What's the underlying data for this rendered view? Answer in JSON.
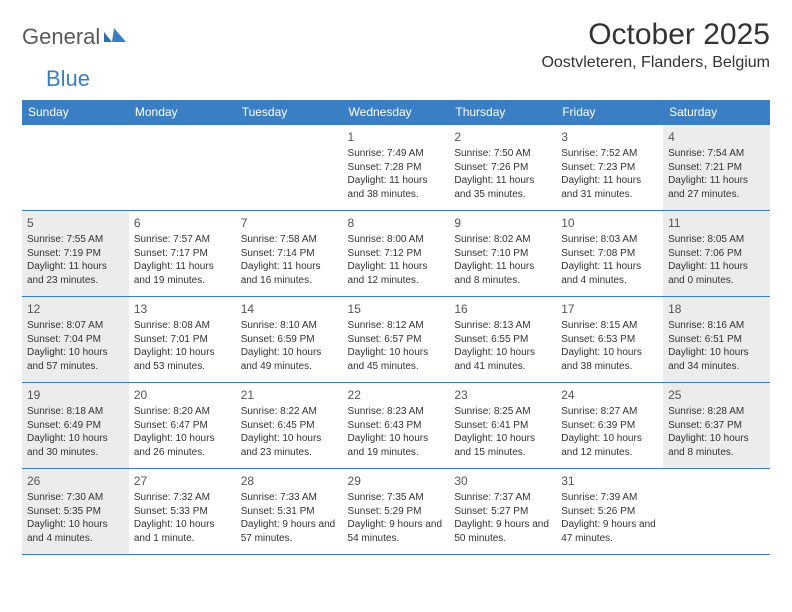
{
  "brand": {
    "name1": "General",
    "name2": "Blue"
  },
  "title": {
    "month": "October 2025",
    "location": "Oostvleteren, Flanders, Belgium"
  },
  "colors": {
    "header_bg": "#3a7fc4",
    "header_text": "#ffffff",
    "border": "#3a7fc4",
    "shade_bg": "#ececec",
    "body_text": "#333333",
    "logo_gray": "#5a5a5a",
    "logo_blue": "#3a7fc4"
  },
  "dayHeaders": [
    "Sunday",
    "Monday",
    "Tuesday",
    "Wednesday",
    "Thursday",
    "Friday",
    "Saturday"
  ],
  "weeks": [
    [
      {
        "day": "",
        "sunrise": "",
        "sunset": "",
        "daylight": "",
        "shade": false
      },
      {
        "day": "",
        "sunrise": "",
        "sunset": "",
        "daylight": "",
        "shade": false
      },
      {
        "day": "",
        "sunrise": "",
        "sunset": "",
        "daylight": "",
        "shade": false
      },
      {
        "day": "1",
        "sunrise": "Sunrise: 7:49 AM",
        "sunset": "Sunset: 7:28 PM",
        "daylight": "Daylight: 11 hours and 38 minutes.",
        "shade": false
      },
      {
        "day": "2",
        "sunrise": "Sunrise: 7:50 AM",
        "sunset": "Sunset: 7:26 PM",
        "daylight": "Daylight: 11 hours and 35 minutes.",
        "shade": false
      },
      {
        "day": "3",
        "sunrise": "Sunrise: 7:52 AM",
        "sunset": "Sunset: 7:23 PM",
        "daylight": "Daylight: 11 hours and 31 minutes.",
        "shade": false
      },
      {
        "day": "4",
        "sunrise": "Sunrise: 7:54 AM",
        "sunset": "Sunset: 7:21 PM",
        "daylight": "Daylight: 11 hours and 27 minutes.",
        "shade": true
      }
    ],
    [
      {
        "day": "5",
        "sunrise": "Sunrise: 7:55 AM",
        "sunset": "Sunset: 7:19 PM",
        "daylight": "Daylight: 11 hours and 23 minutes.",
        "shade": true
      },
      {
        "day": "6",
        "sunrise": "Sunrise: 7:57 AM",
        "sunset": "Sunset: 7:17 PM",
        "daylight": "Daylight: 11 hours and 19 minutes.",
        "shade": false
      },
      {
        "day": "7",
        "sunrise": "Sunrise: 7:58 AM",
        "sunset": "Sunset: 7:14 PM",
        "daylight": "Daylight: 11 hours and 16 minutes.",
        "shade": false
      },
      {
        "day": "8",
        "sunrise": "Sunrise: 8:00 AM",
        "sunset": "Sunset: 7:12 PM",
        "daylight": "Daylight: 11 hours and 12 minutes.",
        "shade": false
      },
      {
        "day": "9",
        "sunrise": "Sunrise: 8:02 AM",
        "sunset": "Sunset: 7:10 PM",
        "daylight": "Daylight: 11 hours and 8 minutes.",
        "shade": false
      },
      {
        "day": "10",
        "sunrise": "Sunrise: 8:03 AM",
        "sunset": "Sunset: 7:08 PM",
        "daylight": "Daylight: 11 hours and 4 minutes.",
        "shade": false
      },
      {
        "day": "11",
        "sunrise": "Sunrise: 8:05 AM",
        "sunset": "Sunset: 7:06 PM",
        "daylight": "Daylight: 11 hours and 0 minutes.",
        "shade": true
      }
    ],
    [
      {
        "day": "12",
        "sunrise": "Sunrise: 8:07 AM",
        "sunset": "Sunset: 7:04 PM",
        "daylight": "Daylight: 10 hours and 57 minutes.",
        "shade": true
      },
      {
        "day": "13",
        "sunrise": "Sunrise: 8:08 AM",
        "sunset": "Sunset: 7:01 PM",
        "daylight": "Daylight: 10 hours and 53 minutes.",
        "shade": false
      },
      {
        "day": "14",
        "sunrise": "Sunrise: 8:10 AM",
        "sunset": "Sunset: 6:59 PM",
        "daylight": "Daylight: 10 hours and 49 minutes.",
        "shade": false
      },
      {
        "day": "15",
        "sunrise": "Sunrise: 8:12 AM",
        "sunset": "Sunset: 6:57 PM",
        "daylight": "Daylight: 10 hours and 45 minutes.",
        "shade": false
      },
      {
        "day": "16",
        "sunrise": "Sunrise: 8:13 AM",
        "sunset": "Sunset: 6:55 PM",
        "daylight": "Daylight: 10 hours and 41 minutes.",
        "shade": false
      },
      {
        "day": "17",
        "sunrise": "Sunrise: 8:15 AM",
        "sunset": "Sunset: 6:53 PM",
        "daylight": "Daylight: 10 hours and 38 minutes.",
        "shade": false
      },
      {
        "day": "18",
        "sunrise": "Sunrise: 8:16 AM",
        "sunset": "Sunset: 6:51 PM",
        "daylight": "Daylight: 10 hours and 34 minutes.",
        "shade": true
      }
    ],
    [
      {
        "day": "19",
        "sunrise": "Sunrise: 8:18 AM",
        "sunset": "Sunset: 6:49 PM",
        "daylight": "Daylight: 10 hours and 30 minutes.",
        "shade": true
      },
      {
        "day": "20",
        "sunrise": "Sunrise: 8:20 AM",
        "sunset": "Sunset: 6:47 PM",
        "daylight": "Daylight: 10 hours and 26 minutes.",
        "shade": false
      },
      {
        "day": "21",
        "sunrise": "Sunrise: 8:22 AM",
        "sunset": "Sunset: 6:45 PM",
        "daylight": "Daylight: 10 hours and 23 minutes.",
        "shade": false
      },
      {
        "day": "22",
        "sunrise": "Sunrise: 8:23 AM",
        "sunset": "Sunset: 6:43 PM",
        "daylight": "Daylight: 10 hours and 19 minutes.",
        "shade": false
      },
      {
        "day": "23",
        "sunrise": "Sunrise: 8:25 AM",
        "sunset": "Sunset: 6:41 PM",
        "daylight": "Daylight: 10 hours and 15 minutes.",
        "shade": false
      },
      {
        "day": "24",
        "sunrise": "Sunrise: 8:27 AM",
        "sunset": "Sunset: 6:39 PM",
        "daylight": "Daylight: 10 hours and 12 minutes.",
        "shade": false
      },
      {
        "day": "25",
        "sunrise": "Sunrise: 8:28 AM",
        "sunset": "Sunset: 6:37 PM",
        "daylight": "Daylight: 10 hours and 8 minutes.",
        "shade": true
      }
    ],
    [
      {
        "day": "26",
        "sunrise": "Sunrise: 7:30 AM",
        "sunset": "Sunset: 5:35 PM",
        "daylight": "Daylight: 10 hours and 4 minutes.",
        "shade": true
      },
      {
        "day": "27",
        "sunrise": "Sunrise: 7:32 AM",
        "sunset": "Sunset: 5:33 PM",
        "daylight": "Daylight: 10 hours and 1 minute.",
        "shade": false
      },
      {
        "day": "28",
        "sunrise": "Sunrise: 7:33 AM",
        "sunset": "Sunset: 5:31 PM",
        "daylight": "Daylight: 9 hours and 57 minutes.",
        "shade": false
      },
      {
        "day": "29",
        "sunrise": "Sunrise: 7:35 AM",
        "sunset": "Sunset: 5:29 PM",
        "daylight": "Daylight: 9 hours and 54 minutes.",
        "shade": false
      },
      {
        "day": "30",
        "sunrise": "Sunrise: 7:37 AM",
        "sunset": "Sunset: 5:27 PM",
        "daylight": "Daylight: 9 hours and 50 minutes.",
        "shade": false
      },
      {
        "day": "31",
        "sunrise": "Sunrise: 7:39 AM",
        "sunset": "Sunset: 5:26 PM",
        "daylight": "Daylight: 9 hours and 47 minutes.",
        "shade": false
      },
      {
        "day": "",
        "sunrise": "",
        "sunset": "",
        "daylight": "",
        "shade": false
      }
    ]
  ]
}
